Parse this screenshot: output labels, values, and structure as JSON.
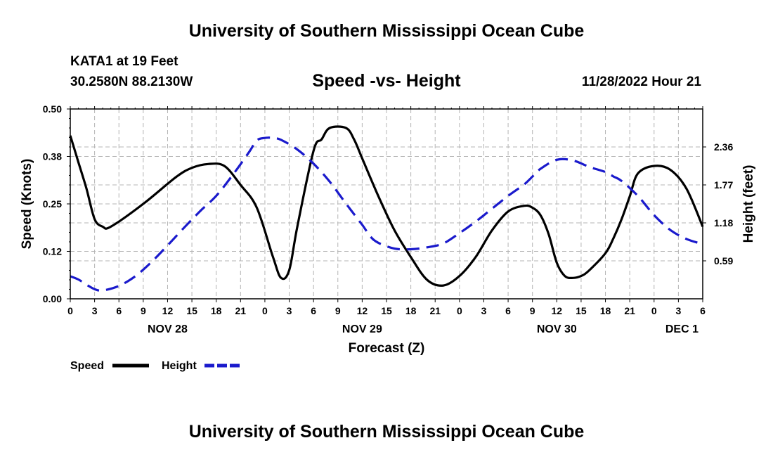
{
  "header": {
    "title": "University of Southern Mississippi Ocean Cube",
    "station": "KATA1 at 19 Feet",
    "coords": "30.2580N  88.2130W",
    "subtitle": "Speed -vs- Height",
    "timestamp": "11/28/2022 Hour 21"
  },
  "footer": {
    "title": "University of Southern Mississippi Ocean Cube"
  },
  "colors": {
    "speed": "#000000",
    "height": "#1a1acc",
    "grid": "#b4b4b4"
  },
  "chart_data": {
    "type": "line",
    "title": "Speed -vs- Height",
    "xlabel": "Forecast (Z)",
    "ylabel_left": "Speed (Knots)",
    "ylabel_right": "Height (feet)",
    "x_hours_range": [
      0,
      78
    ],
    "x_tick_labels": [
      "0",
      "3",
      "6",
      "9",
      "12",
      "15",
      "18",
      "21",
      "0",
      "3",
      "6",
      "9",
      "12",
      "15",
      "18",
      "21",
      "0",
      "3",
      "6",
      "9",
      "12",
      "15",
      "18",
      "21",
      "0",
      "3",
      "6"
    ],
    "day_labels": [
      {
        "label": "NOV 28",
        "hour": 12
      },
      {
        "label": "NOV 29",
        "hour": 36
      },
      {
        "label": "NOV 30",
        "hour": 60
      },
      {
        "label": "DEC 1",
        "hour": 78
      }
    ],
    "y_left": {
      "range": [
        0,
        0.5
      ],
      "ticks": [
        0.0,
        0.125,
        0.25,
        0.375,
        0.5
      ],
      "tick_labels": [
        "0.00",
        "0.12",
        "0.25",
        "0.38",
        "0.50"
      ]
    },
    "y_right": {
      "range": [
        0,
        2.95
      ],
      "ticks": [
        0.59,
        1.18,
        1.77,
        2.36
      ],
      "tick_labels": [
        "0.59",
        "1.18",
        "1.77",
        "2.36"
      ]
    },
    "grid": true,
    "legend": [
      {
        "name": "Speed",
        "style": "solid"
      },
      {
        "name": "Height",
        "style": "dashed"
      }
    ],
    "series": [
      {
        "name": "Speed",
        "axis": "left",
        "style": "solid",
        "x": [
          0,
          1,
          2,
          3,
          4,
          5,
          9,
          13,
          15,
          17,
          19,
          21,
          23,
          25,
          26,
          27,
          28,
          30,
          31,
          32,
          34,
          35,
          36,
          38,
          40,
          42,
          44,
          46,
          48,
          50,
          52,
          54,
          56,
          57,
          58,
          59,
          60,
          61,
          62,
          63,
          64,
          66,
          67,
          68,
          69,
          70,
          72,
          74,
          76,
          78
        ],
        "y": [
          0.43,
          0.36,
          0.29,
          0.21,
          0.19,
          0.19,
          0.25,
          0.32,
          0.345,
          0.355,
          0.35,
          0.3,
          0.24,
          0.11,
          0.055,
          0.075,
          0.19,
          0.39,
          0.42,
          0.45,
          0.45,
          0.42,
          0.37,
          0.27,
          0.18,
          0.11,
          0.05,
          0.035,
          0.06,
          0.11,
          0.18,
          0.23,
          0.245,
          0.24,
          0.22,
          0.17,
          0.095,
          0.06,
          0.055,
          0.06,
          0.075,
          0.12,
          0.16,
          0.21,
          0.27,
          0.33,
          0.35,
          0.34,
          0.29,
          0.19
        ]
      },
      {
        "name": "Height",
        "axis": "right",
        "style": "dashed",
        "x": [
          0,
          1,
          2,
          3,
          4,
          6,
          8,
          10,
          12,
          14,
          16,
          18,
          20,
          22,
          23,
          24,
          25,
          26,
          28,
          30,
          32,
          34,
          36,
          37,
          38,
          40,
          42,
          44,
          46,
          48,
          50,
          52,
          54,
          56,
          57,
          58,
          60,
          62,
          64,
          66,
          67,
          68,
          70,
          72,
          74,
          76,
          78
        ],
        "y": [
          0.35,
          0.3,
          0.22,
          0.15,
          0.13,
          0.2,
          0.35,
          0.57,
          0.83,
          1.1,
          1.36,
          1.6,
          1.92,
          2.27,
          2.46,
          2.5,
          2.5,
          2.47,
          2.32,
          2.1,
          1.82,
          1.48,
          1.15,
          0.97,
          0.87,
          0.78,
          0.77,
          0.8,
          0.86,
          1.02,
          1.2,
          1.4,
          1.6,
          1.78,
          1.9,
          2.02,
          2.16,
          2.15,
          2.05,
          1.97,
          1.9,
          1.83,
          1.6,
          1.3,
          1.07,
          0.93,
          0.85
        ]
      }
    ]
  }
}
